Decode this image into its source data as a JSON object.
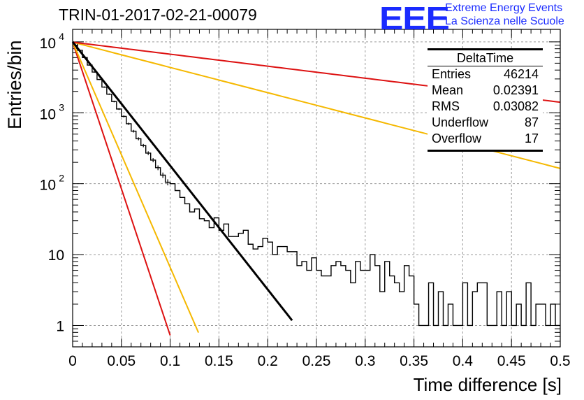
{
  "header": {
    "title": "TRIN-01-2017-02-21-00079",
    "logo_text": "EEE",
    "logo_line1": "Extreme Energy Events",
    "logo_line2": "La Scienza nelle Scuole"
  },
  "stats_box": {
    "title": "DeltaTime",
    "rows": [
      {
        "label": "Entries",
        "value": "46214"
      },
      {
        "label": "Mean",
        "value": "0.02391"
      },
      {
        "label": "RMS",
        "value": "0.03082"
      },
      {
        "label": "Underflow",
        "value": "87"
      },
      {
        "label": "Overflow",
        "value": "17"
      }
    ]
  },
  "chart_data": {
    "type": "line",
    "xlabel": "Time difference [s]",
    "ylabel": "Entries/bin",
    "xlim": [
      0,
      0.5
    ],
    "ylim": [
      0.5,
      15000
    ],
    "yscale": "log",
    "grid": true,
    "x_ticks": [
      "0",
      "0.05",
      "0.1",
      "0.15",
      "0.2",
      "0.25",
      "0.3",
      "0.35",
      "0.4",
      "0.45",
      "0.5"
    ],
    "y_ticks": [
      {
        "value": 1,
        "label": "1"
      },
      {
        "value": 10,
        "label": "10"
      },
      {
        "value": 100,
        "label": "10",
        "exp": "2"
      },
      {
        "value": 1000,
        "label": "10",
        "exp": "3"
      },
      {
        "value": 10000,
        "label": "10",
        "exp": "4"
      }
    ],
    "histogram": {
      "bin_width": 0.005,
      "values": [
        9600,
        7600,
        6000,
        4700,
        3750,
        2950,
        2300,
        1830,
        1440,
        1130,
        890,
        700,
        550,
        430,
        345,
        270,
        215,
        168,
        132,
        105,
        100,
        80,
        64,
        52,
        40,
        44,
        32,
        30,
        24,
        33,
        22,
        27,
        18,
        18,
        20,
        22,
        14,
        12,
        13,
        17,
        15,
        10,
        13,
        13,
        11,
        11,
        7,
        8,
        6,
        9,
        6,
        5,
        5,
        7,
        8,
        7,
        6,
        4,
        8,
        6,
        6,
        10,
        7,
        3,
        8,
        5,
        4,
        3,
        7,
        5,
        2,
        1,
        1,
        4,
        1,
        3,
        1,
        2,
        1,
        1,
        4,
        1,
        3,
        4,
        4,
        1,
        1,
        3,
        1,
        3,
        1,
        2,
        1,
        4,
        1,
        2,
        2,
        1,
        2,
        1
      ]
    },
    "fit": {
      "color": "#000000",
      "x": [
        0,
        0.225
      ],
      "amplitude": 10000,
      "slope": 40.2
    },
    "bands": [
      {
        "color": "#dd1111",
        "x0": 0,
        "x1": 0.1,
        "amplitude": 9900,
        "slope": 95.2
      },
      {
        "color": "#f5b800",
        "x0": 0,
        "x1": 0.129,
        "amplitude": 9900,
        "slope": 73.1
      },
      {
        "color": "#f5b800",
        "x0": 0,
        "x1": 0.5,
        "amplitude": 9900,
        "slope": 8.2
      },
      {
        "color": "#dd1111",
        "x0": 0,
        "x1": 0.5,
        "amplitude": 9900,
        "slope": 3.9
      }
    ]
  }
}
